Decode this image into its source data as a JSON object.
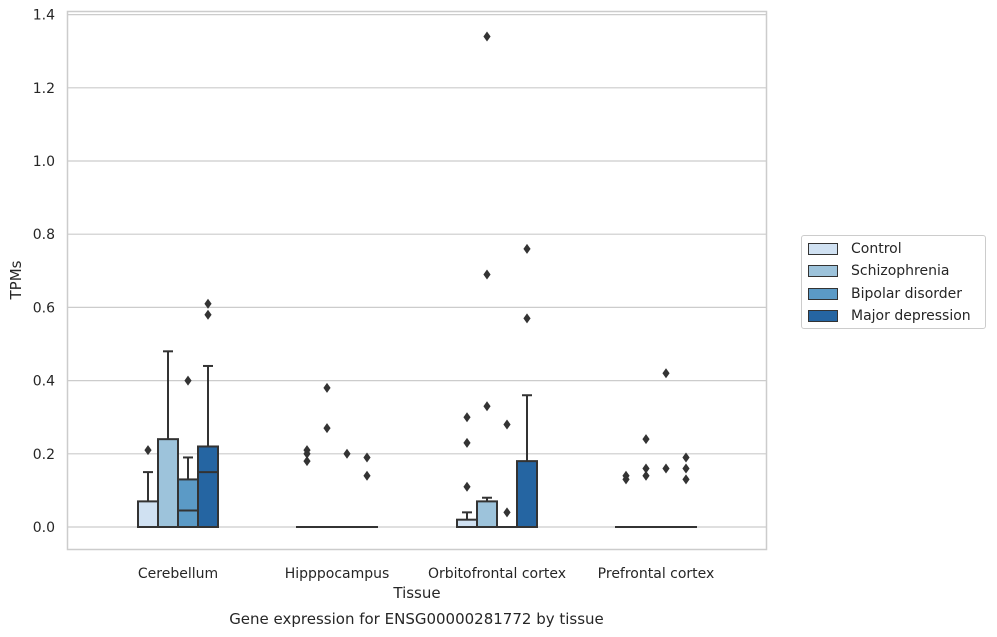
{
  "chart_data": {
    "type": "boxplot",
    "title": "",
    "xlabel": "Tissue",
    "ylabel": "TPMs",
    "caption": "Gene expression for ENSG00000281772 by tissue",
    "ylim": [
      -0.065,
      1.41
    ],
    "yticks": [
      "0.0",
      "0.2",
      "0.4",
      "0.6",
      "0.8",
      "1.0",
      "1.2",
      "1.4"
    ],
    "grid": true,
    "legend_position": "right",
    "categories": [
      "Cerebellum",
      "Hipppocampus",
      "Orbitofrontal cortex",
      "Prefrontal cortex"
    ],
    "series": [
      {
        "name": "Control",
        "color": "#d0e1f2",
        "boxes": [
          {
            "q1": 0,
            "median": 0,
            "q3": 0.07,
            "whisker_low": 0,
            "whisker_high": 0.15,
            "outliers": [
              0.21
            ]
          },
          {
            "q1": 0,
            "median": 0,
            "q3": 0,
            "whisker_low": 0,
            "whisker_high": 0,
            "outliers": [
              0.18,
              0.2,
              0.21
            ]
          },
          {
            "q1": 0,
            "median": 0,
            "q3": 0.02,
            "whisker_low": 0,
            "whisker_high": 0.04,
            "outliers": [
              0.11,
              0.23,
              0.3
            ]
          },
          {
            "q1": 0,
            "median": 0,
            "q3": 0,
            "whisker_low": 0,
            "whisker_high": 0,
            "outliers": [
              0.13,
              0.14
            ]
          }
        ]
      },
      {
        "name": "Schizophrenia",
        "color": "#9dc3db",
        "boxes": [
          {
            "q1": 0,
            "median": 0,
            "q3": 0.24,
            "whisker_low": 0,
            "whisker_high": 0.48,
            "outliers": []
          },
          {
            "q1": 0,
            "median": 0,
            "q3": 0,
            "whisker_low": 0,
            "whisker_high": 0,
            "outliers": [
              0.27,
              0.38
            ]
          },
          {
            "q1": 0,
            "median": 0,
            "q3": 0.07,
            "whisker_low": 0,
            "whisker_high": 0.08,
            "outliers": [
              0.33,
              0.69,
              1.34
            ]
          },
          {
            "q1": 0,
            "median": 0,
            "q3": 0,
            "whisker_low": 0,
            "whisker_high": 0,
            "outliers": [
              0.14,
              0.16,
              0.24
            ]
          }
        ]
      },
      {
        "name": "Bipolar disorder",
        "color": "#5b9ac6",
        "boxes": [
          {
            "q1": 0,
            "median": 0.045,
            "q3": 0.13,
            "whisker_low": 0,
            "whisker_high": 0.19,
            "outliers": [
              0.4
            ]
          },
          {
            "q1": 0,
            "median": 0,
            "q3": 0,
            "whisker_low": 0,
            "whisker_high": 0,
            "outliers": [
              0.2
            ]
          },
          {
            "q1": 0,
            "median": 0,
            "q3": 0,
            "whisker_low": 0,
            "whisker_high": 0,
            "outliers": [
              0.04,
              0.28
            ]
          },
          {
            "q1": 0,
            "median": 0,
            "q3": 0,
            "whisker_low": 0,
            "whisker_high": 0,
            "outliers": [
              0.16,
              0.42
            ]
          }
        ]
      },
      {
        "name": "Major depression",
        "color": "#2565a2",
        "boxes": [
          {
            "q1": 0,
            "median": 0.15,
            "q3": 0.22,
            "whisker_low": 0,
            "whisker_high": 0.44,
            "outliers": [
              0.58,
              0.61
            ]
          },
          {
            "q1": 0,
            "median": 0,
            "q3": 0,
            "whisker_low": 0,
            "whisker_high": 0,
            "outliers": [
              0.14,
              0.19
            ]
          },
          {
            "q1": 0,
            "median": 0,
            "q3": 0.18,
            "whisker_low": 0,
            "whisker_high": 0.36,
            "outliers": [
              0.57,
              0.76
            ]
          },
          {
            "q1": 0,
            "median": 0,
            "q3": 0,
            "whisker_low": 0,
            "whisker_high": 0,
            "outliers": [
              0.13,
              0.16,
              0.19
            ]
          }
        ]
      }
    ]
  }
}
